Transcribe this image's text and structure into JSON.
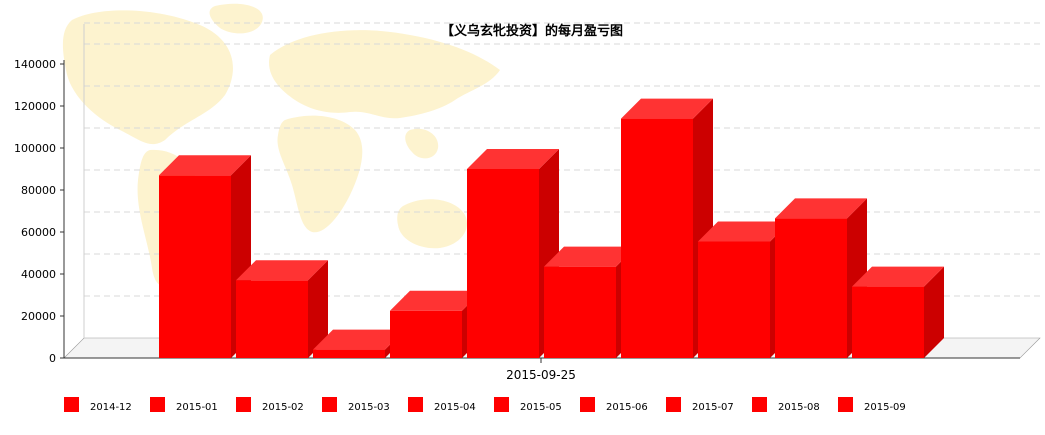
{
  "chart_data": {
    "type": "bar",
    "title": "【义乌玄牝投资】的每月盈亏图",
    "x_category": "2015-09-25",
    "ylim": [
      0,
      140000
    ],
    "y_ticks": [
      "0",
      "20000",
      "40000",
      "60000",
      "80000",
      "100000",
      "120000",
      "140000"
    ],
    "grid": true,
    "legend_position": "bottom",
    "series": [
      {
        "name": "2014-12",
        "value": 87000
      },
      {
        "name": "2015-01",
        "value": 37000
      },
      {
        "name": "2015-02",
        "value": 4000
      },
      {
        "name": "2015-03",
        "value": 22500
      },
      {
        "name": "2015-04",
        "value": 90000
      },
      {
        "name": "2015-05",
        "value": 43500
      },
      {
        "name": "2015-06",
        "value": 114000
      },
      {
        "name": "2015-07",
        "value": 55500
      },
      {
        "name": "2015-08",
        "value": 66500
      },
      {
        "name": "2015-09",
        "value": 34000
      }
    ],
    "colors": {
      "front": "#ff0000",
      "top": "#ff3333",
      "side": "#cc0000",
      "map": "#fdf3cf"
    }
  }
}
